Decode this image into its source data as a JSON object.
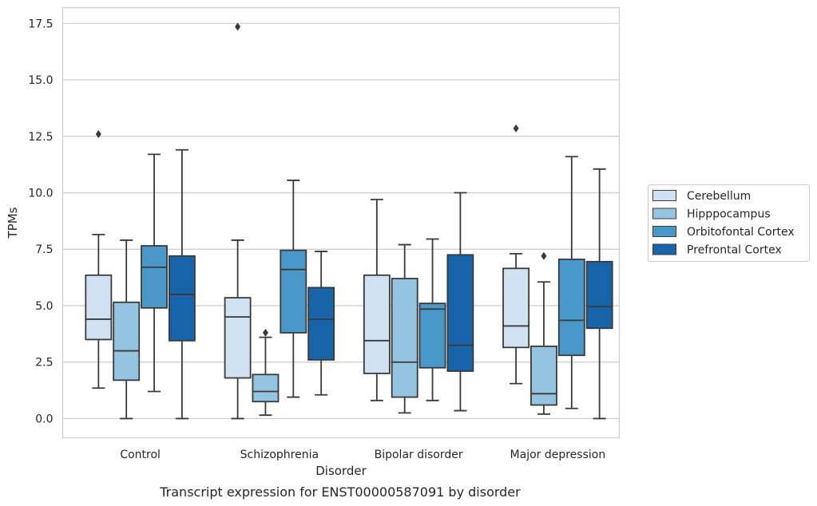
{
  "chart_data": {
    "type": "box",
    "title": "",
    "caption": "Transcript expression for ENST00000587091 by disorder",
    "xlabel": "Disorder",
    "ylabel": "TPMs",
    "ylim": [
      -0.85,
      18.2
    ],
    "yticks": [
      0.0,
      2.5,
      5.0,
      7.5,
      10.0,
      12.5,
      15.0,
      17.5
    ],
    "ytick_labels": [
      "0.0",
      "2.5",
      "5.0",
      "7.5",
      "10.0",
      "12.5",
      "15.0",
      "17.5"
    ],
    "grid": "horizontal",
    "legend_position": "right",
    "categories": [
      "Control",
      "Schizophrenia",
      "Bipolar disorder",
      "Major depression"
    ],
    "series": [
      {
        "name": "Cerebellum",
        "color": "#d0e1f2",
        "boxes": [
          {
            "whisker_low": 1.35,
            "q1": 3.5,
            "median": 4.4,
            "q3": 6.35,
            "whisker_high": 8.15,
            "outliers": [
              12.6
            ]
          },
          {
            "whisker_low": 0.0,
            "q1": 1.8,
            "median": 4.5,
            "q3": 5.35,
            "whisker_high": 7.9,
            "outliers": [
              17.35
            ]
          },
          {
            "whisker_low": 0.8,
            "q1": 2.0,
            "median": 3.45,
            "q3": 6.35,
            "whisker_high": 9.7,
            "outliers": []
          },
          {
            "whisker_low": 1.55,
            "q1": 3.15,
            "median": 4.1,
            "q3": 6.65,
            "whisker_high": 7.3,
            "outliers": [
              12.85
            ]
          }
        ]
      },
      {
        "name": "Hipppocampus",
        "color": "#94c4df",
        "boxes": [
          {
            "whisker_low": 0.0,
            "q1": 1.7,
            "median": 3.0,
            "q3": 5.15,
            "whisker_high": 7.9,
            "outliers": []
          },
          {
            "whisker_low": 0.15,
            "q1": 0.75,
            "median": 1.2,
            "q3": 1.95,
            "whisker_high": 3.6,
            "outliers": [
              3.8
            ]
          },
          {
            "whisker_low": 0.25,
            "q1": 0.95,
            "median": 2.5,
            "q3": 6.2,
            "whisker_high": 7.7,
            "outliers": []
          },
          {
            "whisker_low": 0.2,
            "q1": 0.6,
            "median": 1.1,
            "q3": 3.2,
            "whisker_high": 6.05,
            "outliers": [
              7.2
            ]
          }
        ]
      },
      {
        "name": "Orbitofontal Cortex",
        "color": "#4a98c9",
        "boxes": [
          {
            "whisker_low": 1.2,
            "q1": 4.9,
            "median": 6.7,
            "q3": 7.65,
            "whisker_high": 11.7,
            "outliers": []
          },
          {
            "whisker_low": 0.95,
            "q1": 3.8,
            "median": 6.6,
            "q3": 7.45,
            "whisker_high": 10.55,
            "outliers": []
          },
          {
            "whisker_low": 0.8,
            "q1": 2.25,
            "median": 4.85,
            "q3": 5.1,
            "whisker_high": 7.95,
            "outliers": []
          },
          {
            "whisker_low": 0.45,
            "q1": 2.8,
            "median": 4.35,
            "q3": 7.05,
            "whisker_high": 11.6,
            "outliers": []
          }
        ]
      },
      {
        "name": "Prefrontal Cortex",
        "color": "#1764ab",
        "boxes": [
          {
            "whisker_low": 0.0,
            "q1": 3.45,
            "median": 5.5,
            "q3": 7.2,
            "whisker_high": 11.9,
            "outliers": []
          },
          {
            "whisker_low": 1.05,
            "q1": 2.6,
            "median": 4.4,
            "q3": 5.8,
            "whisker_high": 7.4,
            "outliers": []
          },
          {
            "whisker_low": 0.35,
            "q1": 2.1,
            "median": 3.25,
            "q3": 7.25,
            "whisker_high": 10.0,
            "outliers": []
          },
          {
            "whisker_low": 0.0,
            "q1": 4.0,
            "median": 4.95,
            "q3": 6.95,
            "whisker_high": 11.05,
            "outliers": []
          }
        ]
      }
    ]
  }
}
